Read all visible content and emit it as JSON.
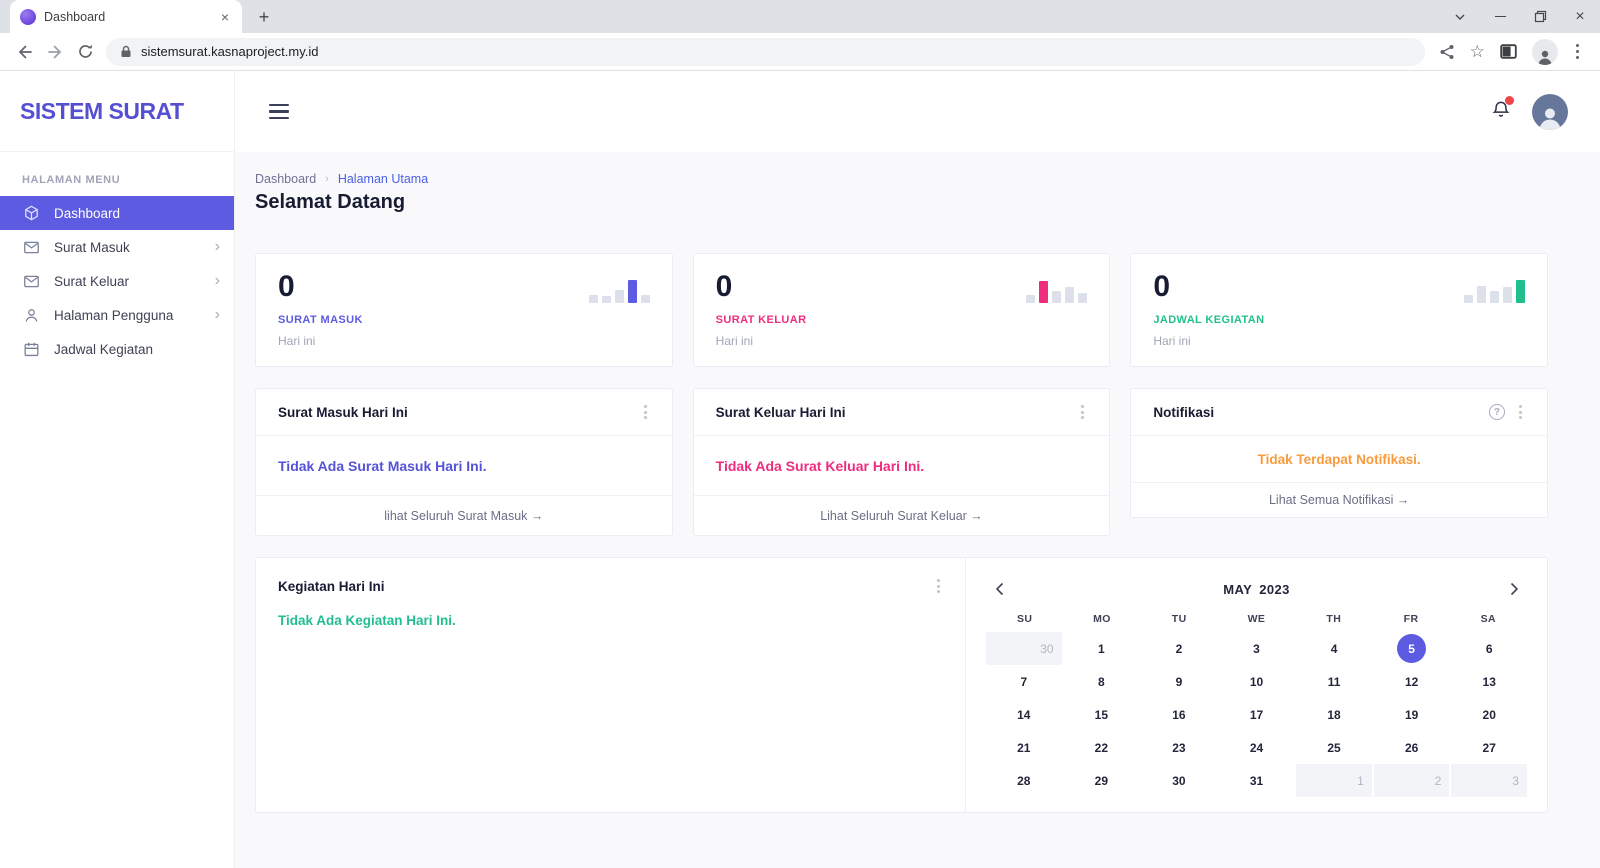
{
  "browser": {
    "tab_title": "Dashboard",
    "url": "sistemsurat.kasnaproject.my.id",
    "window_controls": [
      "chevron-down-icon",
      "minimize-icon",
      "restore-icon",
      "close-icon"
    ],
    "nav_icons": [
      "back-icon",
      "forward-icon",
      "reload-icon",
      "lock-icon"
    ],
    "action_icons": [
      "share-icon",
      "star-icon",
      "side-panel-icon",
      "profile-icon",
      "menu-icon"
    ]
  },
  "sidebar": {
    "logo": "SISTEM SURAT",
    "section_label": "HALAMAN MENU",
    "items": [
      {
        "label": "Dashboard",
        "icon": "cube",
        "active": true,
        "chevron": false
      },
      {
        "label": "Surat Masuk",
        "icon": "mail",
        "active": false,
        "chevron": true
      },
      {
        "label": "Surat Keluar",
        "icon": "mail",
        "active": false,
        "chevron": true
      },
      {
        "label": "Halaman Pengguna",
        "icon": "user",
        "active": false,
        "chevron": true
      },
      {
        "label": "Jadwal Kegiatan",
        "icon": "calendar",
        "active": false,
        "chevron": false
      }
    ]
  },
  "header": {
    "icons": [
      "hamburger-icon",
      "bell-icon",
      "avatar"
    ]
  },
  "breadcrumb": {
    "root": "Dashboard",
    "separator": "›",
    "current": "Halaman Utama"
  },
  "page_title": "Selamat Datang",
  "colors": {
    "primary": "#5d5be2",
    "pink": "#ee2d7f",
    "green": "#21bf8e",
    "orange": "#f99b3d"
  },
  "stat_cards": [
    {
      "value": "0",
      "label": "SURAT MASUK",
      "sub": "Hari ini",
      "accent": "#5d5be2",
      "bars": {
        "heights": [
          8,
          7,
          13,
          23,
          8
        ],
        "accent_index": 3
      }
    },
    {
      "value": "0",
      "label": "SURAT KELUAR",
      "sub": "Hari ini",
      "accent": "#ee2d7f",
      "bars": {
        "heights": [
          8,
          22,
          12,
          16,
          10
        ],
        "accent_index": 1
      }
    },
    {
      "value": "0",
      "label": "JADWAL KEGIATAN",
      "sub": "Hari ini",
      "accent": "#21bf8e",
      "bars": {
        "heights": [
          8,
          17,
          12,
          16,
          23
        ],
        "accent_index": 4
      }
    }
  ],
  "info_cards": [
    {
      "title": "Surat Masuk Hari Ini",
      "message": "Tidak Ada Surat Masuk Hari Ini.",
      "message_color": "#5552d6",
      "message_align": "left",
      "has_help": false,
      "footer": "lihat Seluruh Surat Masuk →"
    },
    {
      "title": "Surat Keluar Hari Ini",
      "message": "Tidak Ada Surat Keluar Hari Ini.",
      "message_color": "#ee2d7f",
      "message_align": "left",
      "has_help": false,
      "footer": "Lihat Seluruh Surat Keluar →"
    },
    {
      "title": "Notifikasi",
      "message": "Tidak Terdapat Notifikasi.",
      "message_color": "#f99b3d",
      "message_align": "center",
      "has_help": true,
      "footer": "Lihat Semua Notifikasi →"
    }
  ],
  "activity_card": {
    "title": "Kegiatan Hari Ini",
    "message": "Tidak Ada Kegiatan Hari Ini.",
    "message_color": "#21bf8e"
  },
  "calendar": {
    "month": "MAY",
    "year": "2023",
    "day_headers": [
      "SU",
      "MO",
      "TU",
      "WE",
      "TH",
      "FR",
      "SA"
    ],
    "weeks": [
      [
        {
          "day": "30",
          "outside": true
        },
        {
          "day": "1"
        },
        {
          "day": "2"
        },
        {
          "day": "3"
        },
        {
          "day": "4"
        },
        {
          "day": "5",
          "selected": true
        },
        {
          "day": "6"
        }
      ],
      [
        {
          "day": "7"
        },
        {
          "day": "8"
        },
        {
          "day": "9"
        },
        {
          "day": "10"
        },
        {
          "day": "11"
        },
        {
          "day": "12"
        },
        {
          "day": "13"
        }
      ],
      [
        {
          "day": "14"
        },
        {
          "day": "15"
        },
        {
          "day": "16"
        },
        {
          "day": "17"
        },
        {
          "day": "18"
        },
        {
          "day": "19"
        },
        {
          "day": "20"
        }
      ],
      [
        {
          "day": "21"
        },
        {
          "day": "22"
        },
        {
          "day": "23"
        },
        {
          "day": "24"
        },
        {
          "day": "25"
        },
        {
          "day": "26"
        },
        {
          "day": "27"
        }
      ],
      [
        {
          "day": "28"
        },
        {
          "day": "29"
        },
        {
          "day": "30"
        },
        {
          "day": "31"
        },
        {
          "day": "1",
          "outside": true
        },
        {
          "day": "2",
          "outside": true
        },
        {
          "day": "3",
          "outside": true
        }
      ]
    ]
  }
}
